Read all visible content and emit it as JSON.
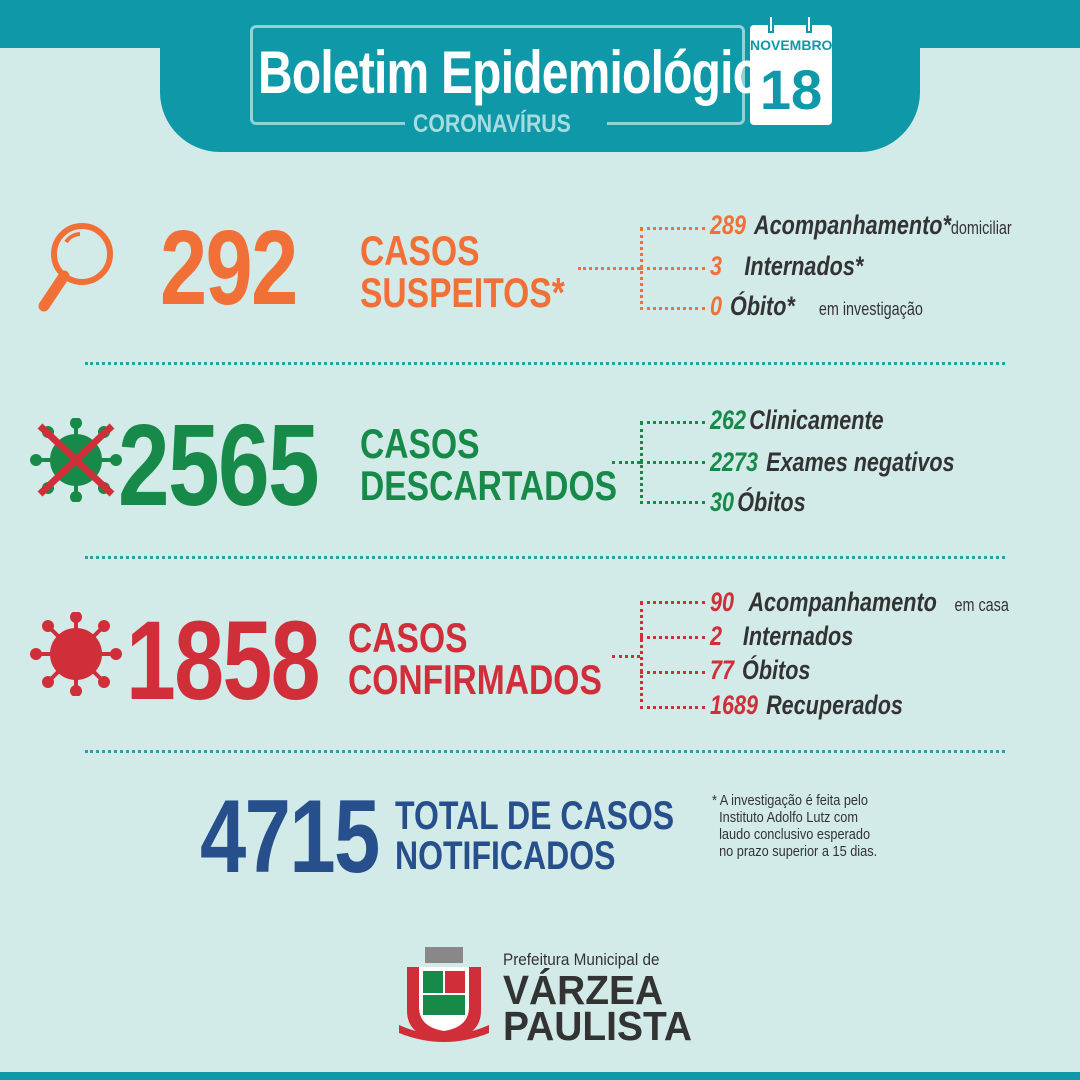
{
  "header": {
    "title": "Boletim Epidemiológico",
    "subtitle": "CORONAVÍRUS",
    "month": "NOVEMBRO",
    "day": "18"
  },
  "colors": {
    "teal": "#0e98a8",
    "orange": "#f07038",
    "green": "#178a4a",
    "red": "#d02f3a",
    "blue": "#264f8c",
    "background": "#d3ebe8"
  },
  "suspeitos": {
    "icon": "magnifier-icon",
    "total": "292",
    "label1": "CASOS",
    "label2": "SUSPEITOS*",
    "items": [
      {
        "n": "289",
        "t": "Acompanhamento*",
        "s": "domiciliar"
      },
      {
        "n": "3",
        "t": "Internados*",
        "s": ""
      },
      {
        "n": "0",
        "t": "Óbito*",
        "s": "em investigação"
      }
    ]
  },
  "descartados": {
    "icon": "crossed-virus-icon",
    "total": "2565",
    "label1": "CASOS",
    "label2": "DESCARTADOS",
    "items": [
      {
        "n": "262",
        "t": "Clinicamente"
      },
      {
        "n": "2273",
        "t": "Exames negativos"
      },
      {
        "n": "30",
        "t": "Óbitos"
      }
    ]
  },
  "confirmados": {
    "icon": "virus-icon",
    "total": "1858",
    "label1": "CASOS",
    "label2": "CONFIRMADOS",
    "items": [
      {
        "n": "90",
        "t": "Acompanhamento",
        "s": "em casa"
      },
      {
        "n": "2",
        "t": "Internados",
        "s": ""
      },
      {
        "n": "77",
        "t": "Óbitos",
        "s": ""
      },
      {
        "n": "1689",
        "t": "Recuperados",
        "s": ""
      }
    ]
  },
  "total": {
    "value": "4715",
    "label1": "TOTAL DE CASOS",
    "label2": "NOTIFICADOS"
  },
  "footnote": "* A investigação é feita pelo\n  Instituto Adolfo Lutz com\n  laudo conclusivo esperado\n  no prazo superior a 15 dias.",
  "footer": {
    "pre": "Prefeitura Municipal de",
    "name1": "VÁRZEA",
    "name2": "PAULISTA",
    "logo": "coat-of-arms-logo"
  }
}
